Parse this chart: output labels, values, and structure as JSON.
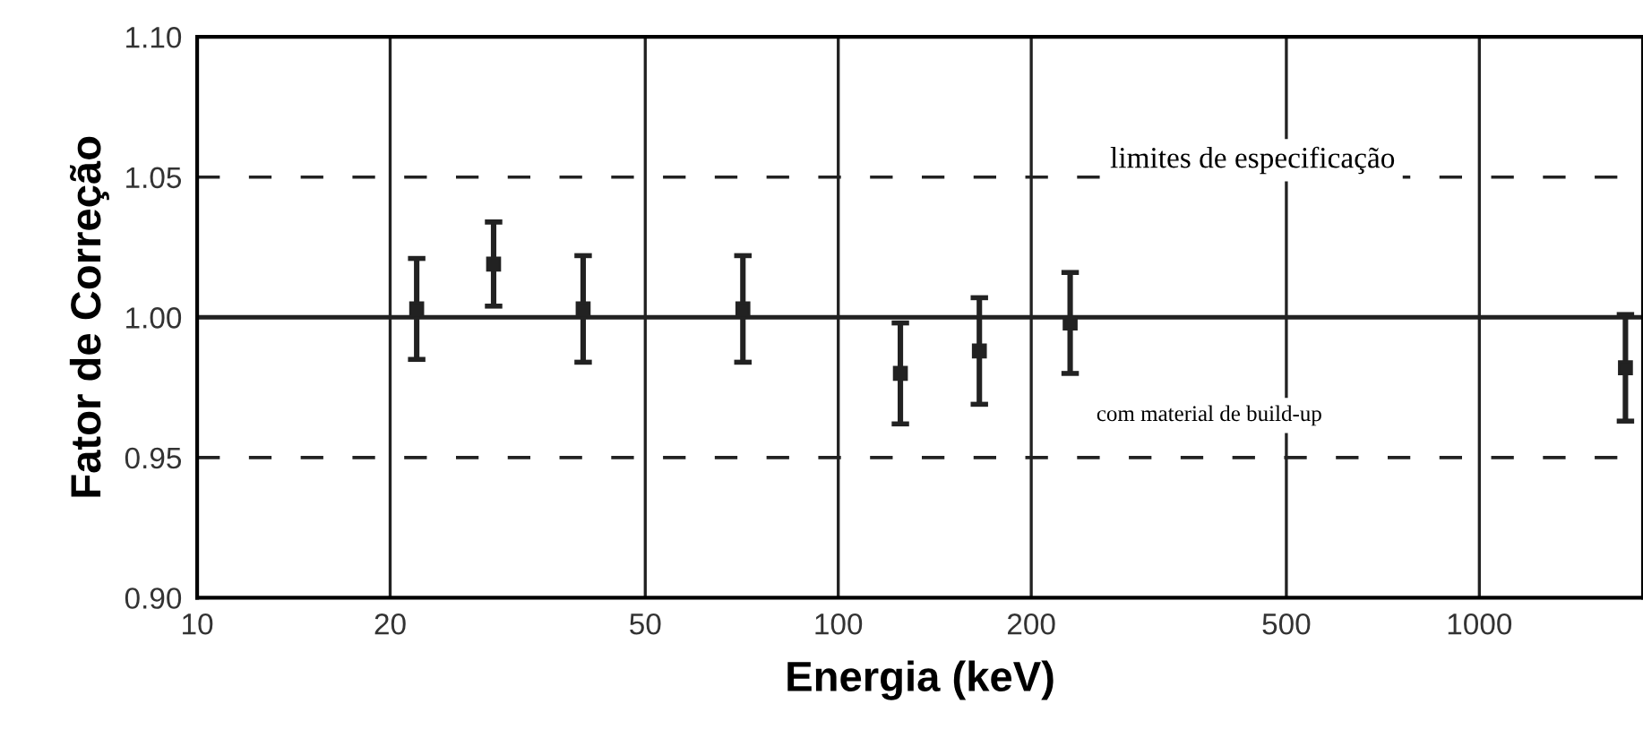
{
  "chart_data": {
    "type": "scatter",
    "xlabel": "Energia (keV)",
    "ylabel": "Fator de Correção",
    "log": "x",
    "x": [
      22,
      29,
      40,
      71,
      125,
      166,
      230,
      1690
    ],
    "values": [
      1.003,
      1.019,
      1.003,
      1.003,
      0.98,
      0.988,
      0.998,
      0.982
    ],
    "errors": [
      0.018,
      0.015,
      0.019,
      0.019,
      0.018,
      0.019,
      0.018,
      0.019
    ],
    "color": "#222222",
    "marker": "square",
    "grid": "x",
    "xlim": [
      10,
      1800
    ],
    "xticks": [
      10,
      20,
      50,
      100,
      200,
      500,
      1000
    ],
    "ylim": [
      0.9,
      1.1
    ],
    "yticks": [
      {
        "value": 0.9,
        "label": "0.90"
      },
      {
        "value": 0.95,
        "label": "0.95"
      },
      {
        "value": 1.0,
        "label": "1.00"
      },
      {
        "value": 1.05,
        "label": "1.05"
      },
      {
        "value": 1.1,
        "label": "1.10"
      }
    ],
    "ref_lines": [
      {
        "axis": "y",
        "value": 1.05,
        "line_style": "dashed",
        "color": "#222222"
      },
      {
        "axis": "y",
        "value": 1.0,
        "line_style": "solid",
        "color": "#222222"
      },
      {
        "axis": "y",
        "value": 0.95,
        "line_style": "dashed",
        "color": "#222222"
      }
    ],
    "annotations": [
      "limites de especificação",
      "com material de build-up"
    ]
  }
}
